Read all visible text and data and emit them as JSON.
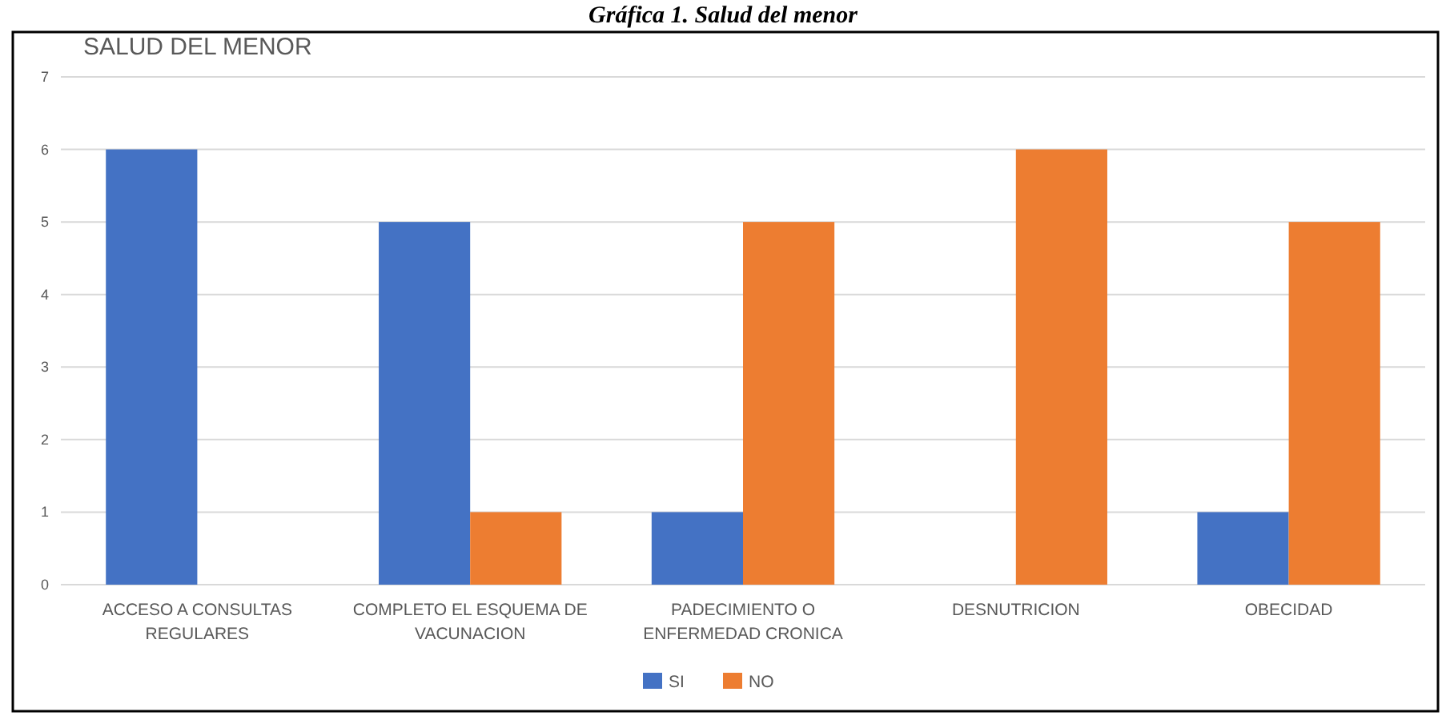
{
  "chart_data": {
    "type": "bar",
    "title": "SALUD DEL MENOR",
    "annotations": [
      "Gráfica 1. Salud del menor"
    ],
    "categories": [
      "ACCESO A CONSULTAS REGULARES",
      "COMPLETO EL ESQUEMA DE VACUNACION",
      "PADECIMIENTO O ENFERMEDAD CRONICA",
      "DESNUTRICION",
      "OBECIDAD"
    ],
    "series": [
      {
        "name": "SI",
        "color": "#4472c4",
        "values": [
          6,
          5,
          1,
          0,
          1
        ]
      },
      {
        "name": "NO",
        "color": "#ed7d31",
        "values": [
          0,
          1,
          5,
          6,
          5
        ]
      }
    ],
    "ylim": [
      0,
      7
    ],
    "yticks": [
      0,
      1,
      2,
      3,
      4,
      5,
      6,
      7
    ],
    "grid": "y",
    "legend": "bottom"
  }
}
